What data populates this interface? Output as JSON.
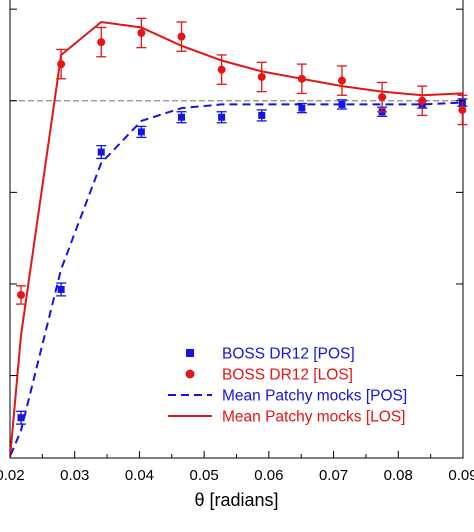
{
  "chart_data": {
    "type": "scatter",
    "xlabel": "θ [radians]",
    "ylabel": "",
    "xlim": [
      0.02,
      0.09
    ],
    "ylim": [
      -1.95,
      0.55
    ],
    "x_ticks": [
      0.02,
      0.03,
      0.04,
      0.05,
      0.06,
      0.07,
      0.08,
      0.09
    ],
    "x_tick_labels": [
      "0.02",
      "0.03",
      "0.04",
      "0.05",
      "0.06",
      "0.07",
      "0.08",
      "0.09"
    ],
    "y_ticks": [
      -1.5,
      -1.0,
      -0.5,
      0.0,
      0.5
    ],
    "grid": false,
    "reference_line_y": 0.0,
    "legend_position": "bottom-right",
    "series": [
      {
        "name": "BOSS DR12 [POS]",
        "kind": "points",
        "marker": "square",
        "color": "#1414e6",
        "x": [
          0.0217,
          0.0279,
          0.0341,
          0.0403,
          0.0465,
          0.0527,
          0.0589,
          0.0651,
          0.0713,
          0.0775,
          0.0837,
          0.0899
        ],
        "y": [
          -1.73,
          -1.03,
          -0.28,
          -0.17,
          -0.09,
          -0.09,
          -0.08,
          -0.04,
          -0.02,
          -0.06,
          -0.02,
          -0.01
        ],
        "yerr": [
          0.035,
          0.035,
          0.035,
          0.03,
          0.03,
          0.03,
          0.03,
          0.025,
          0.025,
          0.025,
          0.02,
          0.02
        ]
      },
      {
        "name": "BOSS DR12 [LOS]",
        "kind": "points",
        "marker": "circle",
        "color": "#e61414",
        "x": [
          0.0217,
          0.0279,
          0.0341,
          0.0403,
          0.0465,
          0.0527,
          0.0589,
          0.0651,
          0.0713,
          0.0775,
          0.0837,
          0.0899
        ],
        "y": [
          -1.06,
          0.2,
          0.32,
          0.37,
          0.35,
          0.17,
          0.13,
          0.12,
          0.11,
          0.02,
          0.0,
          -0.05
        ],
        "yerr": [
          0.05,
          0.08,
          0.08,
          0.08,
          0.08,
          0.08,
          0.08,
          0.08,
          0.08,
          0.08,
          0.08,
          0.08
        ]
      },
      {
        "name": "Mean Patchy mocks [POS]",
        "kind": "line",
        "dash": "dashed",
        "color": "#1414e6",
        "x": [
          0.0193,
          0.0217,
          0.0279,
          0.0341,
          0.0403,
          0.0465,
          0.0527,
          0.0589,
          0.0651,
          0.0713,
          0.0775,
          0.0837,
          0.0899
        ],
        "y": [
          -2.0,
          -1.8,
          -0.92,
          -0.34,
          -0.11,
          -0.04,
          -0.02,
          -0.02,
          -0.02,
          -0.02,
          -0.02,
          -0.02,
          -0.01
        ]
      },
      {
        "name": "Mean Patchy mocks [LOS]",
        "kind": "line",
        "dash": "solid",
        "color": "#e61414",
        "x": [
          0.02,
          0.0217,
          0.0279,
          0.0341,
          0.0403,
          0.0465,
          0.0527,
          0.0589,
          0.0651,
          0.0713,
          0.0775,
          0.0837,
          0.0899
        ],
        "y": [
          -1.95,
          -1.28,
          0.25,
          0.43,
          0.4,
          0.3,
          0.22,
          0.16,
          0.12,
          0.08,
          0.05,
          0.03,
          0.04
        ]
      }
    ]
  }
}
